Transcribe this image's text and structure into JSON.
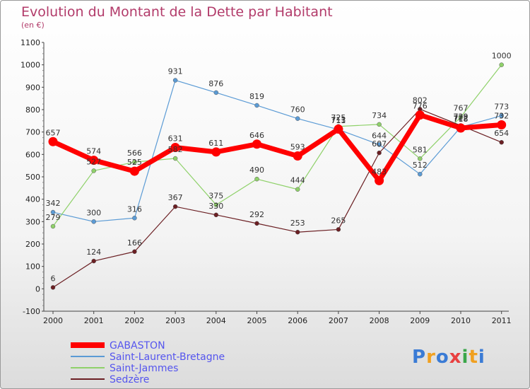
{
  "title": "Evolution du Montant de la Dette par Habitant",
  "unit": "(en €)",
  "logo": {
    "text": "Proxiti",
    "colors": [
      "#3a7bd5",
      "#f0a020",
      "#3a7bd5",
      "#e84040",
      "#3aa64a",
      "#f0a020",
      "#3a7bd5"
    ]
  },
  "chart_data": {
    "type": "line",
    "x": [
      "2000",
      "2001",
      "2002",
      "2003",
      "2004",
      "2005",
      "2006",
      "2007",
      "2008",
      "2009",
      "2010",
      "2011"
    ],
    "ylim": [
      -100,
      1100
    ],
    "yticks": [
      "-100",
      "0",
      "100",
      "200",
      "300",
      "400",
      "500",
      "600",
      "700",
      "800",
      "900",
      "1000",
      "1100"
    ],
    "grid": false,
    "legend_position": "bottom-left",
    "series": [
      {
        "name": "GABASTON",
        "color": "#ff0000",
        "values": [
          657,
          574,
          525,
          631,
          611,
          646,
          593,
          713,
          483,
          776,
          718,
          732
        ],
        "labels": [
          "657",
          "574",
          "525",
          "631",
          "611",
          "646",
          "593",
          "713",
          "483",
          "776",
          "718",
          "732"
        ],
        "bold": true
      },
      {
        "name": "Saint-Laurent-Bretagne",
        "color": "#5b9bd5",
        "values": [
          342,
          300,
          316,
          931,
          876,
          819,
          760,
          711,
          644,
          512,
          722,
          773
        ],
        "labels": [
          "342",
          "300",
          "316",
          "931",
          "876",
          "819",
          "760",
          "711",
          "644",
          "512",
          "722",
          "773"
        ]
      },
      {
        "name": "Saint-Jammes",
        "color": "#8fd16a",
        "values": [
          279,
          527,
          566,
          582,
          375,
          490,
          444,
          725,
          734,
          581,
          767,
          1000
        ],
        "labels": [
          "279",
          "527",
          "566",
          "582",
          "375",
          "490",
          "444",
          "725",
          "734",
          "581",
          "767",
          "1000"
        ]
      },
      {
        "name": "Sedzère",
        "color": "#6b1f23",
        "values": [
          6,
          124,
          166,
          367,
          330,
          292,
          253,
          265,
          607,
          802,
          729,
          654
        ],
        "labels": [
          "6",
          "124",
          "166",
          "367",
          "330",
          "292",
          "253",
          "265",
          "607",
          "802",
          "729",
          "654"
        ]
      }
    ]
  }
}
